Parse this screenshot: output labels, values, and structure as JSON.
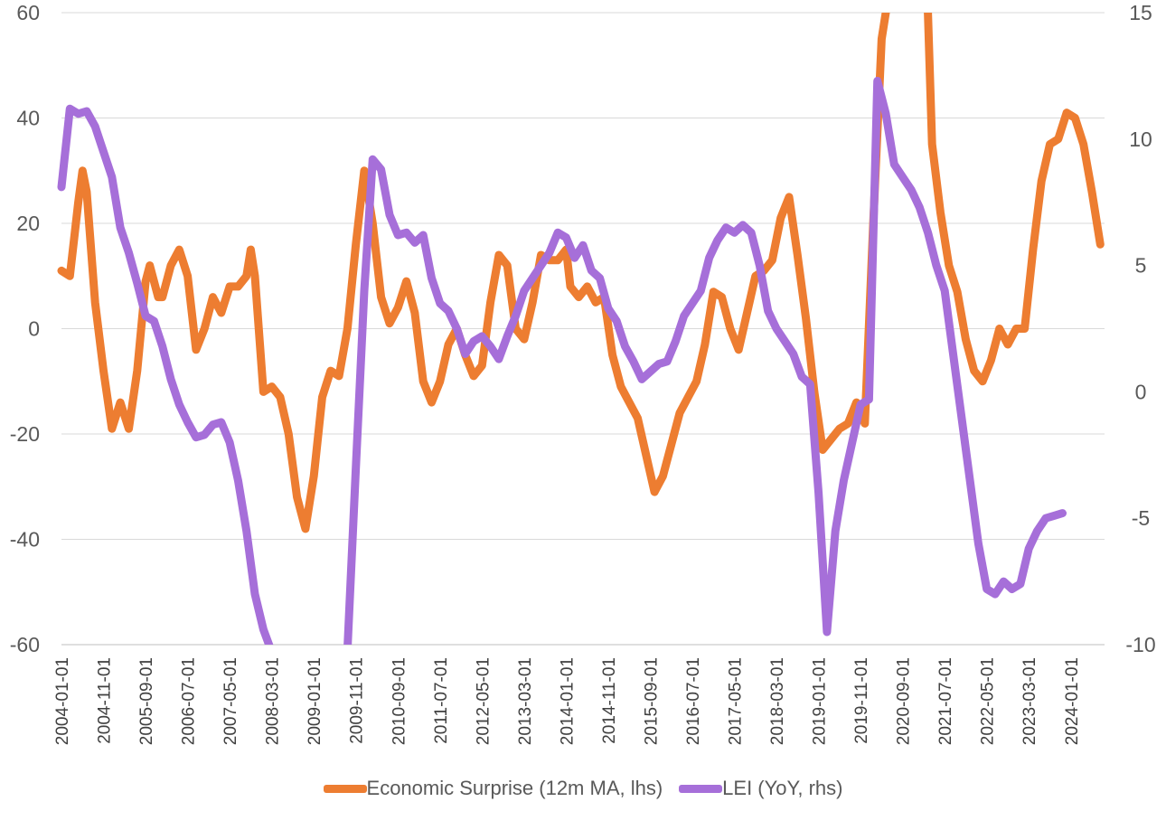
{
  "chart_data": {
    "type": "line",
    "left_axis": {
      "ticks": [
        "60",
        "40",
        "20",
        "0",
        "-20",
        "-40",
        "-60"
      ],
      "ylim": [
        -60,
        60
      ]
    },
    "right_axis": {
      "ticks": [
        "15",
        "10",
        "5",
        "0",
        "-5",
        "-10"
      ],
      "ylim": [
        -10,
        15
      ]
    },
    "x_tick_labels": [
      "2004-01-01",
      "2004-11-01",
      "2005-09-01",
      "2006-07-01",
      "2007-05-01",
      "2008-03-01",
      "2009-01-01",
      "2009-11-01",
      "2010-09-01",
      "2011-07-01",
      "2012-05-01",
      "2013-03-01",
      "2014-01-01",
      "2014-11-01",
      "2015-09-01",
      "2016-07-01",
      "2017-05-01",
      "2018-03-01",
      "2019-01-01",
      "2019-11-01",
      "2020-09-01",
      "2021-07-01",
      "2022-05-01",
      "2023-03-01",
      "2024-01-01"
    ],
    "grid": true,
    "legend_position": "bottom",
    "series": [
      {
        "name": "Economic Surprise (12m MA, lhs)",
        "axis": "left",
        "color": "#ED7D31",
        "points": [
          [
            "2004-01",
            11
          ],
          [
            "2004-03",
            10
          ],
          [
            "2004-05",
            24
          ],
          [
            "2004-06",
            30
          ],
          [
            "2004-07",
            26
          ],
          [
            "2004-09",
            5
          ],
          [
            "2004-11",
            -8
          ],
          [
            "2005-01",
            -19
          ],
          [
            "2005-03",
            -14
          ],
          [
            "2005-05",
            -19
          ],
          [
            "2005-07",
            -8
          ],
          [
            "2005-09",
            9
          ],
          [
            "2005-10",
            12
          ],
          [
            "2005-12",
            6
          ],
          [
            "2006-01",
            6
          ],
          [
            "2006-03",
            12
          ],
          [
            "2006-05",
            15
          ],
          [
            "2006-07",
            10
          ],
          [
            "2006-09",
            -4
          ],
          [
            "2006-11",
            0
          ],
          [
            "2007-01",
            6
          ],
          [
            "2007-03",
            3
          ],
          [
            "2007-05",
            8
          ],
          [
            "2007-07",
            8
          ],
          [
            "2007-09",
            10
          ],
          [
            "2007-10",
            15
          ],
          [
            "2007-11",
            10
          ],
          [
            "2008-01",
            -12
          ],
          [
            "2008-03",
            -11
          ],
          [
            "2008-05",
            -13
          ],
          [
            "2008-07",
            -20
          ],
          [
            "2008-09",
            -32
          ],
          [
            "2008-11",
            -38
          ],
          [
            "2009-01",
            -28
          ],
          [
            "2009-03",
            -13
          ],
          [
            "2009-05",
            -8
          ],
          [
            "2009-07",
            -9
          ],
          [
            "2009-09",
            0
          ],
          [
            "2009-11",
            16
          ],
          [
            "2010-01",
            30
          ],
          [
            "2010-03",
            20
          ],
          [
            "2010-05",
            6
          ],
          [
            "2010-07",
            1
          ],
          [
            "2010-09",
            4
          ],
          [
            "2010-11",
            9
          ],
          [
            "2011-01",
            3
          ],
          [
            "2011-03",
            -10
          ],
          [
            "2011-05",
            -14
          ],
          [
            "2011-07",
            -10
          ],
          [
            "2011-09",
            -3
          ],
          [
            "2011-11",
            0
          ],
          [
            "2012-01",
            -5
          ],
          [
            "2012-03",
            -9
          ],
          [
            "2012-05",
            -7
          ],
          [
            "2012-07",
            5
          ],
          [
            "2012-09",
            14
          ],
          [
            "2012-11",
            12
          ],
          [
            "2013-01",
            0
          ],
          [
            "2013-03",
            -2
          ],
          [
            "2013-05",
            5
          ],
          [
            "2013-07",
            14
          ],
          [
            "2013-09",
            13
          ],
          [
            "2013-11",
            13
          ],
          [
            "2014-01",
            15
          ],
          [
            "2014-02",
            8
          ],
          [
            "2014-04",
            6
          ],
          [
            "2014-06",
            8
          ],
          [
            "2014-08",
            5
          ],
          [
            "2014-10",
            6
          ],
          [
            "2014-12",
            -5
          ],
          [
            "2015-02",
            -11
          ],
          [
            "2015-04",
            -14
          ],
          [
            "2015-06",
            -17
          ],
          [
            "2015-08",
            -24
          ],
          [
            "2015-10",
            -31
          ],
          [
            "2015-12",
            -28
          ],
          [
            "2016-02",
            -22
          ],
          [
            "2016-04",
            -16
          ],
          [
            "2016-06",
            -13
          ],
          [
            "2016-08",
            -10
          ],
          [
            "2016-10",
            -3
          ],
          [
            "2016-12",
            7
          ],
          [
            "2017-02",
            6
          ],
          [
            "2017-04",
            0
          ],
          [
            "2017-06",
            -4
          ],
          [
            "2017-08",
            3
          ],
          [
            "2017-10",
            10
          ],
          [
            "2017-12",
            11
          ],
          [
            "2018-02",
            13
          ],
          [
            "2018-04",
            21
          ],
          [
            "2018-06",
            25
          ],
          [
            "2018-08",
            14
          ],
          [
            "2018-10",
            2
          ],
          [
            "2018-12",
            -12
          ],
          [
            "2019-02",
            -23
          ],
          [
            "2019-04",
            -21
          ],
          [
            "2019-06",
            -19
          ],
          [
            "2019-08",
            -18
          ],
          [
            "2019-10",
            -14
          ],
          [
            "2019-12",
            -18
          ],
          [
            "2020-02",
            20
          ],
          [
            "2020-04",
            55
          ],
          [
            "2020-05",
            60
          ]
        ],
        "points_after_clip": [
          [
            "2021-03",
            60
          ],
          [
            "2021-04",
            35
          ],
          [
            "2021-06",
            22
          ],
          [
            "2021-08",
            12
          ],
          [
            "2021-10",
            7
          ],
          [
            "2021-12",
            -2
          ],
          [
            "2022-02",
            -8
          ],
          [
            "2022-04",
            -10
          ],
          [
            "2022-06",
            -6
          ],
          [
            "2022-08",
            0
          ],
          [
            "2022-10",
            -3
          ],
          [
            "2022-12",
            0
          ],
          [
            "2023-02",
            0
          ],
          [
            "2023-04",
            15
          ],
          [
            "2023-06",
            28
          ],
          [
            "2023-08",
            35
          ],
          [
            "2023-10",
            36
          ],
          [
            "2023-12",
            41
          ],
          [
            "2024-02",
            40
          ],
          [
            "2024-04",
            35
          ],
          [
            "2024-06",
            26
          ],
          [
            "2024-08",
            16
          ]
        ]
      },
      {
        "name": "LEI (YoY, rhs)",
        "axis": "right",
        "color": "#A66FD9",
        "points": [
          [
            "2004-01",
            8.1
          ],
          [
            "2004-03",
            11.2
          ],
          [
            "2004-05",
            11
          ],
          [
            "2004-07",
            11.1
          ],
          [
            "2004-09",
            10.5
          ],
          [
            "2004-11",
            9.5
          ],
          [
            "2005-01",
            8.5
          ],
          [
            "2005-03",
            6.5
          ],
          [
            "2005-05",
            5.5
          ],
          [
            "2005-07",
            4.3
          ],
          [
            "2005-09",
            3
          ],
          [
            "2005-11",
            2.8
          ],
          [
            "2006-01",
            1.8
          ],
          [
            "2006-03",
            0.5
          ],
          [
            "2006-05",
            -0.5
          ],
          [
            "2006-07",
            -1.2
          ],
          [
            "2006-09",
            -1.8
          ],
          [
            "2006-11",
            -1.7
          ],
          [
            "2007-01",
            -1.3
          ],
          [
            "2007-03",
            -1.2
          ],
          [
            "2007-05",
            -2
          ],
          [
            "2007-07",
            -3.5
          ],
          [
            "2007-09",
            -5.5
          ],
          [
            "2007-11",
            -8
          ],
          [
            "2008-01",
            -9.4
          ],
          [
            "2008-03",
            -10.3
          ]
        ],
        "points_after_clip": [
          [
            "2009-09",
            -10.2
          ],
          [
            "2009-11",
            -3
          ],
          [
            "2010-01",
            4
          ],
          [
            "2010-03",
            9.2
          ],
          [
            "2010-05",
            8.8
          ],
          [
            "2010-07",
            7
          ],
          [
            "2010-09",
            6.2
          ],
          [
            "2010-11",
            6.3
          ],
          [
            "2011-01",
            5.9
          ],
          [
            "2011-03",
            6.2
          ],
          [
            "2011-05",
            4.5
          ],
          [
            "2011-07",
            3.5
          ],
          [
            "2011-09",
            3.2
          ],
          [
            "2011-11",
            2.5
          ],
          [
            "2012-01",
            1.5
          ],
          [
            "2012-03",
            2
          ],
          [
            "2012-05",
            2.2
          ],
          [
            "2012-07",
            1.8
          ],
          [
            "2012-09",
            1.3
          ],
          [
            "2012-11",
            2.2
          ],
          [
            "2013-01",
            3
          ],
          [
            "2013-03",
            4
          ],
          [
            "2013-05",
            4.5
          ],
          [
            "2013-07",
            5
          ],
          [
            "2013-09",
            5.5
          ],
          [
            "2013-11",
            6.3
          ],
          [
            "2014-01",
            6.1
          ],
          [
            "2014-03",
            5.3
          ],
          [
            "2014-05",
            5.8
          ],
          [
            "2014-07",
            4.8
          ],
          [
            "2014-09",
            4.5
          ],
          [
            "2014-11",
            3.3
          ],
          [
            "2015-01",
            2.8
          ],
          [
            "2015-03",
            1.8
          ],
          [
            "2015-05",
            1.2
          ],
          [
            "2015-07",
            0.5
          ],
          [
            "2015-09",
            0.8
          ],
          [
            "2015-11",
            1.1
          ],
          [
            "2016-01",
            1.2
          ],
          [
            "2016-03",
            2
          ],
          [
            "2016-05",
            3
          ],
          [
            "2016-07",
            3.5
          ],
          [
            "2016-09",
            4
          ],
          [
            "2016-11",
            5.3
          ],
          [
            "2017-01",
            6
          ],
          [
            "2017-03",
            6.5
          ],
          [
            "2017-05",
            6.3
          ],
          [
            "2017-07",
            6.6
          ],
          [
            "2017-09",
            6.3
          ],
          [
            "2017-11",
            5
          ],
          [
            "2018-01",
            3.2
          ],
          [
            "2018-03",
            2.5
          ],
          [
            "2018-05",
            2
          ],
          [
            "2018-07",
            1.5
          ],
          [
            "2018-09",
            0.6
          ],
          [
            "2018-11",
            0.3
          ],
          [
            "2019-01",
            -4
          ],
          [
            "2019-03",
            -9.5
          ],
          [
            "2019-05",
            -5.5
          ],
          [
            "2019-07",
            -3.5
          ],
          [
            "2019-09",
            -2
          ],
          [
            "2019-11",
            -0.5
          ],
          [
            "2020-01",
            -0.3
          ],
          [
            "2020-03",
            12.3
          ],
          [
            "2020-05",
            11
          ],
          [
            "2020-07",
            9
          ],
          [
            "2020-09",
            8.5
          ],
          [
            "2020-11",
            8
          ],
          [
            "2021-01",
            7.3
          ],
          [
            "2021-03",
            6.3
          ],
          [
            "2021-05",
            5
          ],
          [
            "2021-07",
            4
          ],
          [
            "2021-09",
            1.5
          ],
          [
            "2021-11",
            -1
          ],
          [
            "2022-01",
            -3.5
          ],
          [
            "2022-03",
            -6
          ],
          [
            "2022-05",
            -7.8
          ],
          [
            "2022-07",
            -8
          ],
          [
            "2022-09",
            -7.5
          ],
          [
            "2022-11",
            -7.8
          ],
          [
            "2023-01",
            -7.6
          ],
          [
            "2023-03",
            -6.2
          ],
          [
            "2023-05",
            -5.5
          ],
          [
            "2023-07",
            -5
          ],
          [
            "2023-09",
            -4.9
          ],
          [
            "2023-11",
            -4.8
          ]
        ]
      }
    ]
  }
}
